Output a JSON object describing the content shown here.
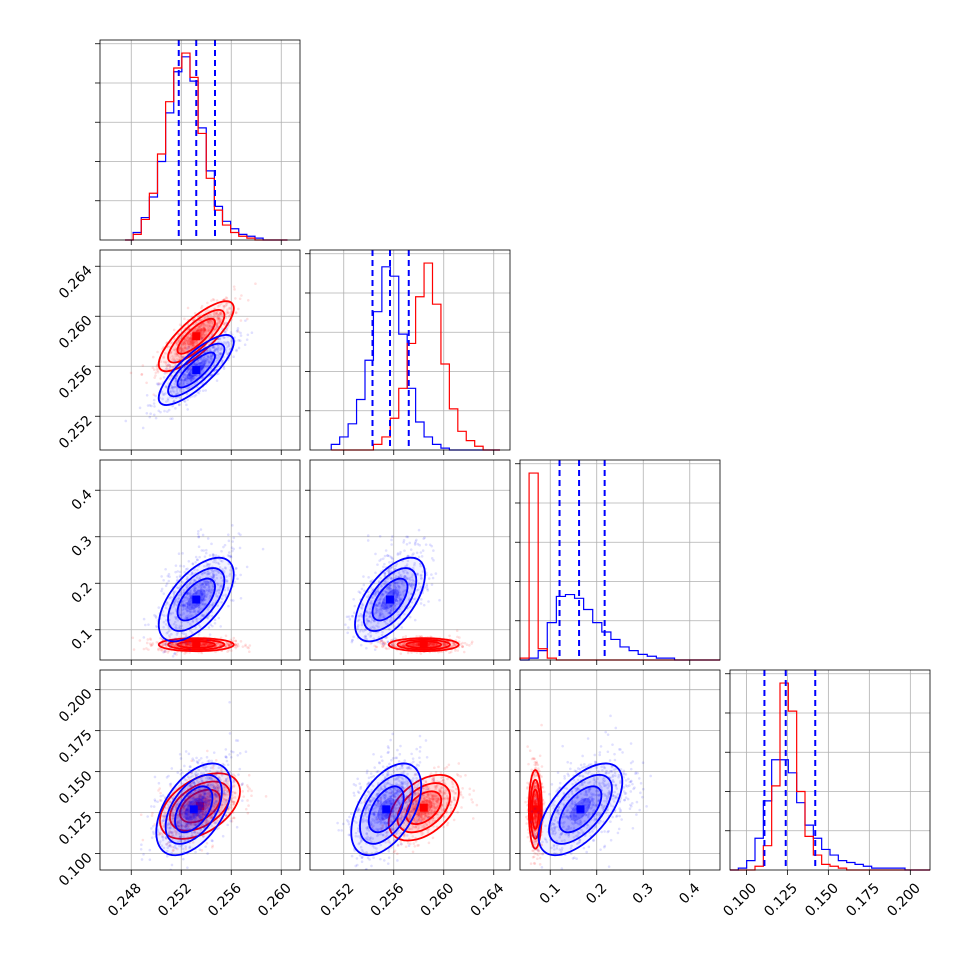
{
  "chart_data": {
    "type": "corner",
    "parameters": 4,
    "colors": {
      "blue": "#0000ff",
      "red": "#ff0000"
    },
    "grid": true,
    "axes": {
      "p0": {
        "range": [
          0.2455,
          0.2615
        ],
        "ticks": [
          0.248,
          0.252,
          0.256,
          0.26
        ],
        "tick_labels": [
          "0.248",
          "0.252",
          "0.256",
          "0.260"
        ]
      },
      "p1": {
        "range": [
          0.2493,
          0.2653
        ],
        "ticks": [
          0.252,
          0.256,
          0.26,
          0.264
        ],
        "tick_labels": [
          "0.252",
          "0.256",
          "0.260",
          "0.264"
        ]
      },
      "p2": {
        "range": [
          0.035,
          0.465
        ],
        "ticks": [
          0.1,
          0.2,
          0.3,
          0.4
        ],
        "tick_labels": [
          "0.1",
          "0.2",
          "0.3",
          "0.4"
        ]
      },
      "p3": {
        "range": [
          0.09,
          0.212
        ],
        "ticks": [
          0.1,
          0.125,
          0.15,
          0.175,
          0.2
        ],
        "tick_labels": [
          "0.100",
          "0.125",
          "0.150",
          "0.175",
          "0.200"
        ]
      }
    },
    "marginals": [
      {
        "param": "p0",
        "quantile_lines": [
          0.2518,
          0.2532,
          0.2547
        ],
        "blue_hist": {
          "edges_range": [
            0.2475,
            0.2605
          ],
          "bins": 20,
          "counts": [
            0,
            0.04,
            0.12,
            0.23,
            0.42,
            0.68,
            0.9,
            0.98,
            0.85,
            0.6,
            0.37,
            0.18,
            0.1,
            0.06,
            0.03,
            0.02,
            0.01,
            0,
            0,
            0
          ]
        },
        "red_hist": {
          "edges_range": [
            0.2475,
            0.2605
          ],
          "bins": 20,
          "counts": [
            0,
            0.03,
            0.11,
            0.25,
            0.46,
            0.74,
            0.92,
            1.0,
            0.87,
            0.57,
            0.33,
            0.16,
            0.08,
            0.04,
            0.02,
            0.01,
            0,
            0,
            0,
            0
          ]
        }
      },
      {
        "param": "p1",
        "quantile_lines": [
          0.2543,
          0.2557,
          0.2572
        ],
        "blue_hist": {
          "edges_range": [
            0.251,
            0.2645
          ],
          "bins": 20,
          "counts": [
            0.03,
            0.07,
            0.14,
            0.27,
            0.48,
            0.74,
            0.98,
            0.93,
            0.62,
            0.33,
            0.15,
            0.07,
            0.03,
            0.01,
            0,
            0,
            0,
            0,
            0,
            0
          ]
        },
        "red_hist": {
          "edges_range": [
            0.251,
            0.2645
          ],
          "bins": 20,
          "counts": [
            0,
            0,
            0,
            0,
            0,
            0.03,
            0.07,
            0.17,
            0.33,
            0.57,
            0.82,
            1.0,
            0.78,
            0.46,
            0.22,
            0.1,
            0.05,
            0.02,
            0,
            0
          ]
        }
      },
      {
        "param": "p2",
        "quantile_lines": [
          0.12,
          0.162,
          0.217
        ],
        "blue_hist": {
          "edges_range": [
            0.035,
            0.465
          ],
          "bins": 22,
          "counts": [
            0,
            0.01,
            0.05,
            0.2,
            0.34,
            0.35,
            0.33,
            0.27,
            0.2,
            0.15,
            0.11,
            0.07,
            0.05,
            0.03,
            0.02,
            0.01,
            0.01,
            0,
            0,
            0,
            0,
            0
          ]
        },
        "red_hist": {
          "edges_range": [
            0.035,
            0.465
          ],
          "bins": 22,
          "counts": [
            0.01,
            1.0,
            0.06,
            0.01,
            0,
            0,
            0,
            0,
            0,
            0,
            0,
            0,
            0,
            0,
            0,
            0,
            0,
            0,
            0,
            0,
            0,
            0
          ]
        }
      },
      {
        "param": "p3",
        "quantile_lines": [
          0.111,
          0.124,
          0.142
        ],
        "blue_hist": {
          "edges_range": [
            0.09,
            0.212
          ],
          "bins": 24,
          "counts": [
            0,
            0.01,
            0.05,
            0.17,
            0.37,
            0.59,
            0.59,
            0.52,
            0.36,
            0.24,
            0.17,
            0.11,
            0.08,
            0.05,
            0.04,
            0.03,
            0.02,
            0.01,
            0.01,
            0.01,
            0.01,
            0,
            0,
            0
          ]
        },
        "red_hist": {
          "edges_range": [
            0.09,
            0.212
          ],
          "bins": 24,
          "counts": [
            0,
            0,
            0,
            0.02,
            0.13,
            0.45,
            1.0,
            0.85,
            0.42,
            0.18,
            0.08,
            0.03,
            0.02,
            0.01,
            0,
            0,
            0,
            0,
            0,
            0,
            0,
            0,
            0,
            0
          ]
        }
      }
    ],
    "joint": [
      {
        "x": "p0",
        "y": "p1",
        "blue": {
          "mean": [
            0.2532,
            0.2557
          ],
          "sd": [
            0.0015,
            0.0014
          ],
          "rho": 0.8,
          "tail": [
            0,
            0
          ]
        },
        "red": {
          "mean": [
            0.2532,
            0.2584
          ],
          "sd": [
            0.0015,
            0.0014
          ],
          "rho": 0.8,
          "tail": [
            0,
            0
          ]
        }
      },
      {
        "x": "p0",
        "y": "p2",
        "blue": {
          "mean": [
            0.2532,
            0.165
          ],
          "sd": [
            0.0015,
            0.045
          ],
          "rho": 0.6,
          "tail": [
            0,
            0.04
          ]
        },
        "red": {
          "mean": [
            0.2532,
            0.068
          ],
          "sd": [
            0.0015,
            0.007
          ],
          "rho": 0.0,
          "tail": [
            0,
            0
          ]
        }
      },
      {
        "x": "p1",
        "y": "p2",
        "blue": {
          "mean": [
            0.2557,
            0.165
          ],
          "sd": [
            0.0014,
            0.045
          ],
          "rho": 0.6,
          "tail": [
            0,
            0.04
          ]
        },
        "red": {
          "mean": [
            0.2584,
            0.068
          ],
          "sd": [
            0.0014,
            0.007
          ],
          "rho": 0.0,
          "tail": [
            0,
            0
          ]
        }
      },
      {
        "x": "p0",
        "y": "p3",
        "blue": {
          "mean": [
            0.253,
            0.127
          ],
          "sd": [
            0.0015,
            0.014
          ],
          "rho": 0.5,
          "tail": [
            0,
            0.01
          ]
        },
        "red": {
          "mean": [
            0.2535,
            0.129
          ],
          "sd": [
            0.0016,
            0.01
          ],
          "rho": 0.45,
          "tail": [
            0,
            0
          ]
        }
      },
      {
        "x": "p1",
        "y": "p3",
        "blue": {
          "mean": [
            0.2554,
            0.127
          ],
          "sd": [
            0.0014,
            0.014
          ],
          "rho": 0.5,
          "tail": [
            0,
            0.01
          ]
        },
        "red": {
          "mean": [
            0.2584,
            0.128
          ],
          "sd": [
            0.0014,
            0.01
          ],
          "rho": 0.45,
          "tail": [
            0,
            0
          ]
        }
      },
      {
        "x": "p2",
        "y": "p3",
        "blue": {
          "mean": [
            0.165,
            0.127
          ],
          "sd": [
            0.045,
            0.014
          ],
          "rho": 0.6,
          "tail": [
            0.04,
            0.01
          ]
        },
        "red": {
          "mean": [
            0.068,
            0.127
          ],
          "sd": [
            0.007,
            0.012
          ],
          "rho": 0.0,
          "tail": [
            0,
            0
          ]
        }
      }
    ]
  }
}
